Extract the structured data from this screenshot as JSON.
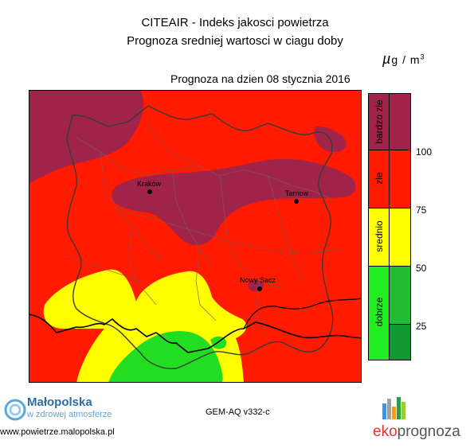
{
  "header": {
    "title_line1": "CITEAIR - Indeks jakosci powietrza",
    "title_line2": "Prognoza sredniej wartosci w ciagu doby",
    "unit_mu": "µ",
    "unit_g": "g",
    "unit_slash": "/",
    "unit_m": "m",
    "unit_exp": "3",
    "forecast_date": "Prognoza na dzien  08 stycznia 2016"
  },
  "map": {
    "cities": [
      {
        "name": "Kraków"
      },
      {
        "name": "Tarnow"
      },
      {
        "name": "Nowy Sacz"
      }
    ]
  },
  "legend": {
    "categories": [
      {
        "label": "bardzo zle",
        "color": "#a0244a"
      },
      {
        "label": "zle",
        "color": "#ff1a00"
      },
      {
        "label": "srednio",
        "color": "#ffff00"
      },
      {
        "label": "dobrze",
        "color": "#22dd22"
      }
    ],
    "ticks": [
      "100",
      "75",
      "50",
      "25"
    ]
  },
  "footer": {
    "malopolska_title": "Małopolska",
    "malopolska_sub": "w zdrowej atmosferze",
    "malopolska_url": "www.powietrze.malopolska.pl",
    "model": "GEM-AQ v332-c",
    "eko": "eko",
    "prognoza": "prognoza"
  }
}
